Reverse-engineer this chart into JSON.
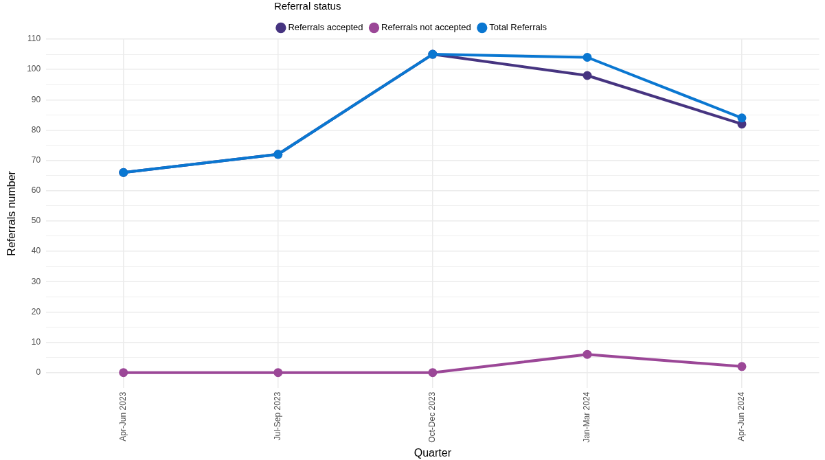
{
  "chart_data": {
    "type": "line",
    "xlabel": "Quarter",
    "ylabel": "Referrals number",
    "legend_title": "Referral status",
    "categories": [
      "Apr-Jun 2023",
      "Jul-Sep 2023",
      "Oct-Dec 2023",
      "Jan-Mar 2024",
      "Apr-Jun 2024"
    ],
    "series": [
      {
        "name": "Referrals accepted",
        "color": "#463480",
        "values": [
          66,
          72,
          105,
          98,
          82
        ]
      },
      {
        "name": "Referrals not accepted",
        "color": "#9b4797",
        "values": [
          0,
          0,
          0,
          6,
          2
        ]
      },
      {
        "name": "Total Referrals",
        "color": "#0a77d1",
        "values": [
          66,
          72,
          105,
          104,
          84
        ]
      }
    ],
    "ylim": [
      -5,
      110
    ],
    "yticks": [
      0,
      {
        "value": 5,
        "label": null
      },
      10,
      {
        "value": 15,
        "label": null
      },
      20,
      {
        "value": 25,
        "label": null
      },
      30,
      {
        "value": 35,
        "label": null
      },
      40,
      {
        "value": 45,
        "label": null
      },
      50,
      {
        "value": 55,
        "label": null
      },
      60,
      {
        "value": 65,
        "label": null
      },
      70,
      {
        "value": 75,
        "label": null
      },
      80,
      {
        "value": 85,
        "label": null
      },
      90,
      {
        "value": 95,
        "label": null
      },
      100,
      {
        "value": 105,
        "label": null
      },
      110
    ],
    "grid": true,
    "legend": "top",
    "marker": "circle",
    "line_style": "solid"
  }
}
